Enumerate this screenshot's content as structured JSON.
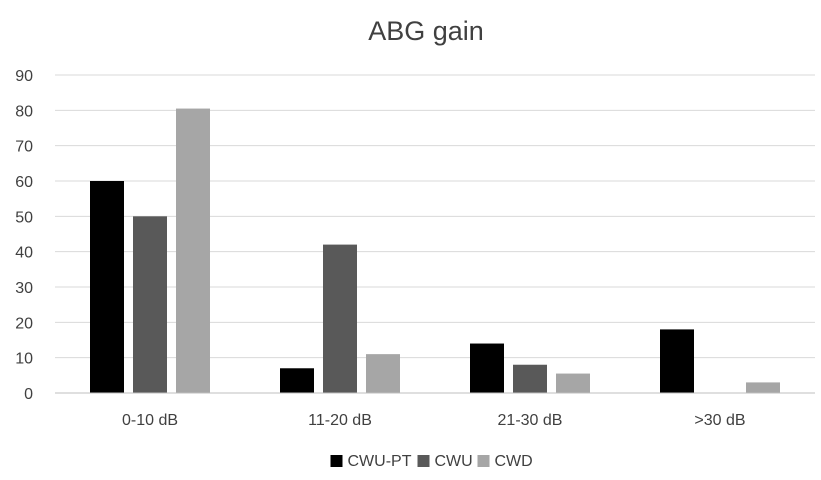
{
  "chart_data": {
    "type": "bar",
    "title": "ABG gain",
    "xlabel": "",
    "ylabel": "",
    "categories": [
      "0-10 dB",
      "11-20 dB",
      "21-30 dB",
      ">30 dB"
    ],
    "series": [
      {
        "name": "CWU-PT",
        "color": "#000000",
        "values": [
          60,
          7,
          14,
          18
        ]
      },
      {
        "name": "CWU",
        "color": "#595959",
        "values": [
          50,
          42,
          8,
          0
        ]
      },
      {
        "name": "CWD",
        "color": "#a6a6a6",
        "values": [
          80.5,
          11,
          5.5,
          3
        ]
      }
    ],
    "ylim": [
      0,
      90
    ],
    "yticks": [
      0,
      10,
      20,
      30,
      40,
      50,
      60,
      70,
      80,
      90
    ],
    "grid": true,
    "legend": "bottom-center"
  }
}
